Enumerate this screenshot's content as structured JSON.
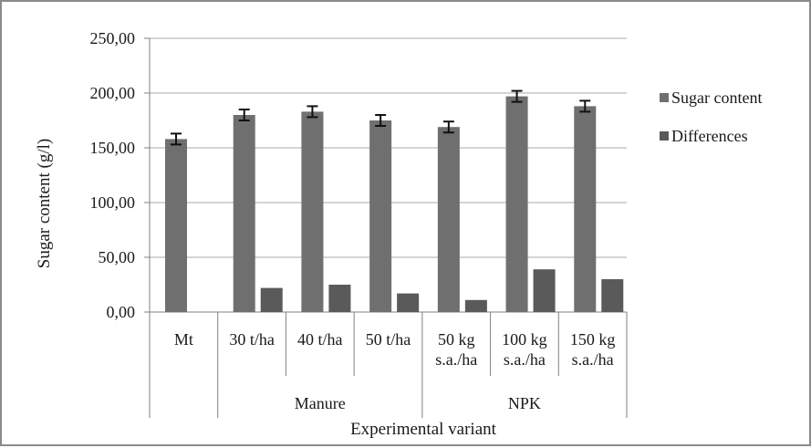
{
  "chart_data": {
    "type": "bar",
    "title": "",
    "ylabel": "Sugar content (g/l)",
    "xlabel": "Experimental variant",
    "ylim": [
      0,
      250
    ],
    "yticks": [
      "0,00",
      "50,00",
      "100,00",
      "150,00",
      "200,00",
      "250,00"
    ],
    "ytick_values": [
      0,
      50,
      100,
      150,
      200,
      250
    ],
    "grid": true,
    "legend_position": "right",
    "categories": [
      {
        "lines": [
          "Mt"
        ]
      },
      {
        "lines": [
          "30 t/ha"
        ]
      },
      {
        "lines": [
          "40 t/ha"
        ]
      },
      {
        "lines": [
          "50 t/ha"
        ]
      },
      {
        "lines": [
          "50 kg",
          "s.a./ha"
        ]
      },
      {
        "lines": [
          "100 kg",
          "s.a./ha"
        ]
      },
      {
        "lines": [
          "150 kg",
          "s.a./ha"
        ]
      }
    ],
    "groups": [
      {
        "label": "Manure",
        "from": 1,
        "to": 3
      },
      {
        "label": "NPK",
        "from": 4,
        "to": 6
      }
    ],
    "series": [
      {
        "name": "Sugar content",
        "color": "#6f6f6f",
        "values": [
          158,
          180,
          183,
          175,
          169,
          197,
          188
        ],
        "errors": [
          5,
          5,
          5,
          5,
          5,
          5,
          5
        ]
      },
      {
        "name": "Differences",
        "color": "#5a5a5a",
        "values": [
          0,
          22,
          25,
          17,
          11,
          39,
          30
        ]
      }
    ]
  }
}
